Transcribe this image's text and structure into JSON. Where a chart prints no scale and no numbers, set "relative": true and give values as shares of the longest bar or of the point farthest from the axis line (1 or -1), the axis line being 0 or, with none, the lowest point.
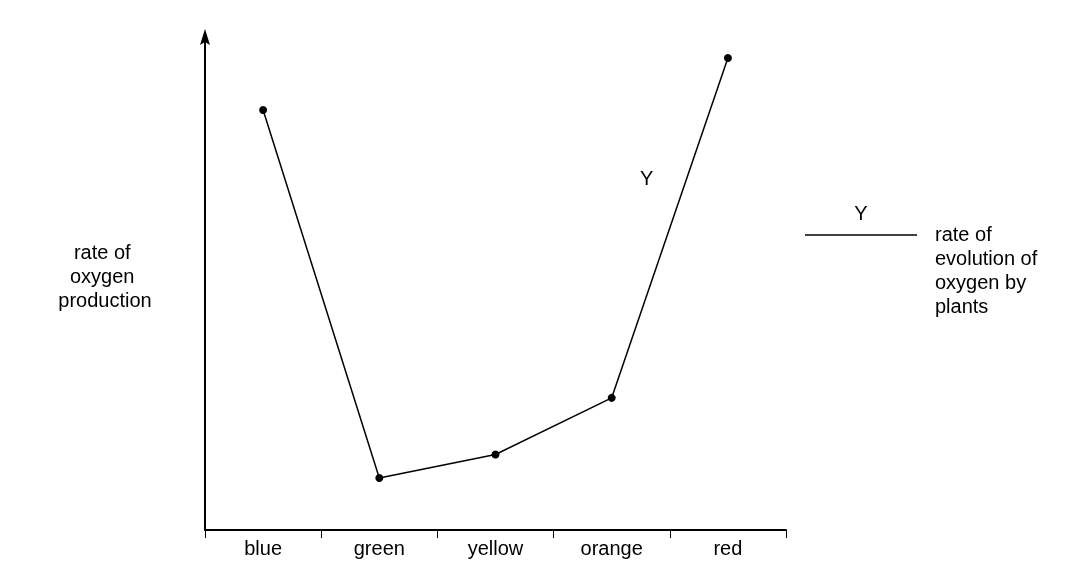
{
  "chart_data": {
    "type": "line",
    "relative": true,
    "ylabel": "rate of oxygen production",
    "categories": [
      "blue",
      "green",
      "yellow",
      "orange",
      "red"
    ],
    "series": [
      {
        "name": "Y",
        "color": "#000000",
        "values": [
          0.89,
          0.11,
          0.16,
          0.28,
          1
        ]
      }
    ],
    "annotations": [
      "rate of evolution of oxygen by plants"
    ],
    "legend": "right",
    "marker": "circle",
    "line_style": "solid",
    "grid": false
  }
}
